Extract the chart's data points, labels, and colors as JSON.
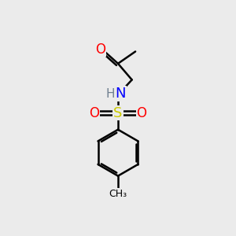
{
  "background_color": "#ebebeb",
  "atom_colors": {
    "O": "#ff0000",
    "N": "#0000ff",
    "S": "#cccc00",
    "H": "#708090",
    "C": "#000000"
  },
  "bond_color": "#000000",
  "bond_width": 1.8,
  "figure_size": [
    3.0,
    3.0
  ],
  "dpi": 100
}
